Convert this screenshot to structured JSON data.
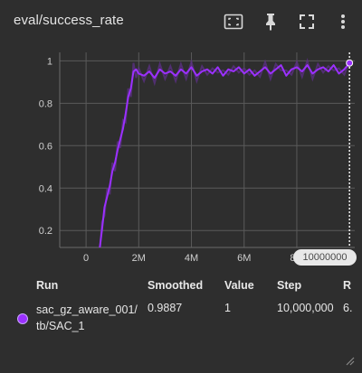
{
  "card": {
    "title": "eval/success_rate",
    "icons": [
      "fit-domain-icon",
      "pin-icon",
      "fullscreen-icon",
      "more-vert-icon"
    ]
  },
  "colors": {
    "background": "#2e2e2e",
    "series": "#9b30ff",
    "series_raw": "#5a2f82",
    "grid": "#5a5a5a"
  },
  "chart_data": {
    "type": "line",
    "title": "",
    "xlabel": "",
    "ylabel": "",
    "x_ticks": [
      {
        "value": 0,
        "label": "0"
      },
      {
        "value": 2000000,
        "label": "2M"
      },
      {
        "value": 4000000,
        "label": "4M"
      },
      {
        "value": 6000000,
        "label": "6M"
      },
      {
        "value": 8000000,
        "label": "8M"
      }
    ],
    "y_ticks": [
      {
        "value": 0.2,
        "label": "0.2"
      },
      {
        "value": 0.4,
        "label": "0.4"
      },
      {
        "value": 0.6,
        "label": "0.6"
      },
      {
        "value": 0.8,
        "label": "0.8"
      },
      {
        "value": 1.0,
        "label": "1"
      }
    ],
    "xlim": [
      -1000000,
      10200000
    ],
    "ylim": [
      0.12,
      1.04
    ],
    "grid": true,
    "hover_step_label": "10000000",
    "hover_step": 10000000,
    "series": [
      {
        "name": "sac_gz_aware_001/tb/SAC_1",
        "x": [
          500000,
          600000,
          700000,
          800000,
          900000,
          1000000,
          1100000,
          1200000,
          1300000,
          1400000,
          1500000,
          1600000,
          1700000,
          1800000,
          1900000,
          2000000,
          2200000,
          2400000,
          2600000,
          2800000,
          3000000,
          3200000,
          3400000,
          3600000,
          3800000,
          4000000,
          4200000,
          4400000,
          4600000,
          4800000,
          5000000,
          5200000,
          5400000,
          5600000,
          5800000,
          6000000,
          6200000,
          6400000,
          6600000,
          6800000,
          7000000,
          7200000,
          7400000,
          7600000,
          7800000,
          8000000,
          8200000,
          8400000,
          8600000,
          8800000,
          9000000,
          9200000,
          9400000,
          9600000,
          9800000,
          10000000
        ],
        "y": [
          0.1,
          0.2,
          0.31,
          0.36,
          0.41,
          0.48,
          0.52,
          0.58,
          0.63,
          0.68,
          0.75,
          0.83,
          0.87,
          0.95,
          0.96,
          0.94,
          0.93,
          0.95,
          0.92,
          0.96,
          0.94,
          0.95,
          0.93,
          0.96,
          0.94,
          0.97,
          0.93,
          0.95,
          0.96,
          0.94,
          0.97,
          0.93,
          0.96,
          0.95,
          0.97,
          0.94,
          0.96,
          0.93,
          0.95,
          0.97,
          0.94,
          0.96,
          0.98,
          0.93,
          0.96,
          0.97,
          0.95,
          0.98,
          0.94,
          0.96,
          0.97,
          0.95,
          0.98,
          0.94,
          0.96,
          0.99
        ]
      }
    ]
  },
  "table": {
    "headers": {
      "run": "Run",
      "smoothed": "Smoothed",
      "value": "Value",
      "step": "Step",
      "relative": "R"
    },
    "row": {
      "run_line1": "sac_gz_aware_001/",
      "run_line2": "tb/SAC_1",
      "smoothed": "0.9887",
      "value": "1",
      "step": "10,000,000",
      "relative": "6."
    }
  }
}
